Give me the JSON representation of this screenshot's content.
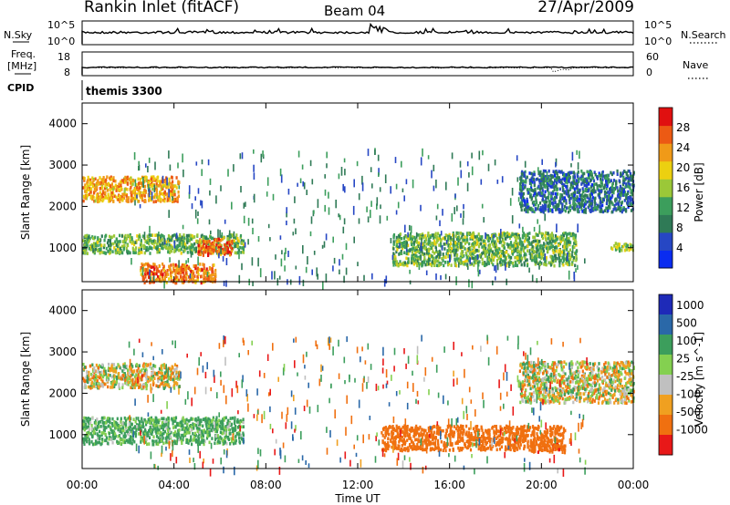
{
  "header": {
    "station": "Rankin Inlet (fitACF)",
    "beam": "Beam 04",
    "date": "27/Apr/2009"
  },
  "chart_data": [
    {
      "type": "line",
      "name": "noise-panel",
      "left_label": "N.Sky",
      "right_label": "N.Search",
      "left_ticks": [
        "10^5",
        "10^0"
      ],
      "right_ticks": [
        "10^5",
        "10^0"
      ],
      "x_range_hours": [
        0,
        24
      ],
      "series": [
        {
          "name": "N.Sky",
          "style": "solid",
          "level": 0.55
        },
        {
          "name": "N.Search",
          "style": "dotted",
          "level": 0.6
        }
      ]
    },
    {
      "type": "line",
      "name": "frequency-panel",
      "left_label": "Freq.",
      "left_unit": "[MHz]",
      "right_label": "Nave",
      "left_ticks": [
        "18",
        "8"
      ],
      "right_ticks": [
        "60",
        "0"
      ],
      "x_range_hours": [
        0,
        24
      ],
      "series": [
        {
          "name": "Freq.",
          "style": "solid",
          "value_mhz": 11.5
        },
        {
          "name": "Nave",
          "style": "dotted",
          "value": 20
        }
      ]
    },
    {
      "type": "text",
      "name": "cpid-panel",
      "label": "CPID",
      "program": "themis 3300"
    },
    {
      "type": "heatmap",
      "name": "power-panel",
      "ylabel": "Slant Range [km]",
      "yticks": [
        1000,
        2000,
        3000,
        4000
      ],
      "ylim": [
        180,
        4500
      ],
      "colorbar_label": "Power [dB]",
      "colorbar_ticks": [
        4,
        8,
        12,
        16,
        20,
        24,
        28
      ],
      "colorbar_range": [
        0,
        32
      ],
      "colorbar_colors": [
        "#0a2cf0",
        "#2647c4",
        "#2f7a56",
        "#3c9e5c",
        "#9bc838",
        "#ecd010",
        "#f09a18",
        "#ec5a14",
        "#e01010"
      ],
      "echo_regions": [
        {
          "t": [
            0.0,
            4.2
          ],
          "range": [
            2150,
            2750
          ],
          "power": 22
        },
        {
          "t": [
            0.0,
            7.0
          ],
          "range": [
            900,
            1350
          ],
          "power": 14
        },
        {
          "t": [
            5.0,
            6.5
          ],
          "range": [
            850,
            1250
          ],
          "power": 26
        },
        {
          "t": [
            2.5,
            5.8
          ],
          "range": [
            180,
            650
          ],
          "power": 25
        },
        {
          "t": [
            13.5,
            21.5
          ],
          "range": [
            600,
            1400
          ],
          "power": 14
        },
        {
          "t": [
            19.0,
            24.0
          ],
          "range": [
            1900,
            2900
          ],
          "power": 8
        },
        {
          "t": [
            23.0,
            24.0
          ],
          "range": [
            950,
            1150
          ],
          "power": 16
        }
      ]
    },
    {
      "type": "heatmap",
      "name": "velocity-panel",
      "ylabel": "Slant Range [km]",
      "yticks": [
        1000,
        2000,
        3000,
        4000
      ],
      "ylim": [
        180,
        4500
      ],
      "colorbar_label": "Velocity [m s^-1]",
      "colorbar_ticks": [
        "1000",
        "500",
        "100",
        "25",
        "-25",
        "-100",
        "-500",
        "-1000"
      ],
      "colorbar_colors": [
        "#1e2ab8",
        "#2a68a8",
        "#3c9e5c",
        "#84d050",
        "#c0c0c0",
        "#f0a020",
        "#f07010",
        "#e81818"
      ],
      "echo_regions": [
        {
          "t": [
            0.0,
            4.2
          ],
          "range": [
            2150,
            2750
          ],
          "velocity": 0
        },
        {
          "t": [
            0.0,
            7.0
          ],
          "range": [
            800,
            1450
          ],
          "velocity": 150
        },
        {
          "t": [
            13.0,
            21.0
          ],
          "range": [
            650,
            1250
          ],
          "velocity": -300
        },
        {
          "t": [
            19.0,
            24.0
          ],
          "range": [
            1800,
            2800
          ],
          "velocity": 0
        },
        {
          "t": [
            19.5,
            21.0
          ],
          "range": [
            600,
            800
          ],
          "velocity": -400
        }
      ]
    }
  ],
  "x_axis": {
    "label": "Time UT",
    "ticks": [
      "00:00",
      "04:00",
      "08:00",
      "12:00",
      "16:00",
      "20:00",
      "00:00"
    ],
    "range_hours": [
      0,
      24
    ]
  }
}
